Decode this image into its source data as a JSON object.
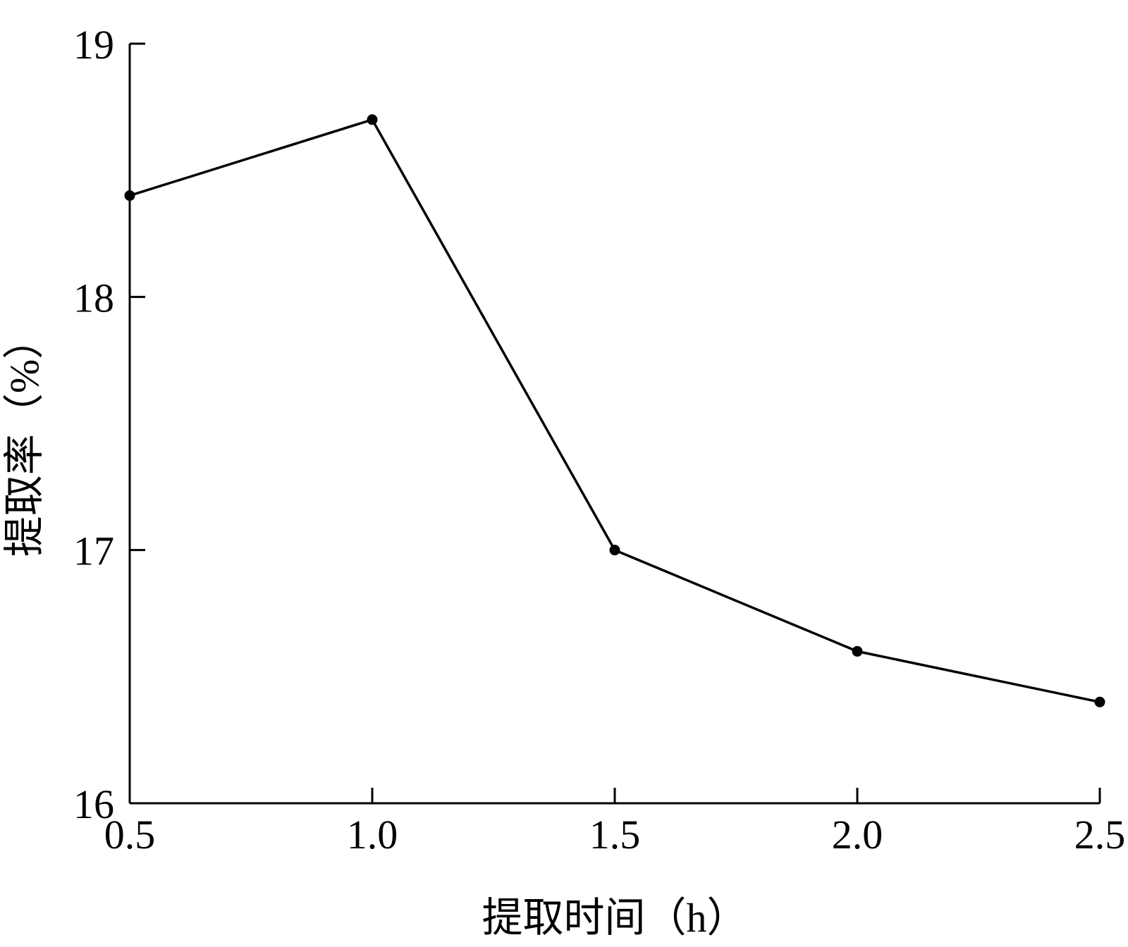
{
  "chart_data": {
    "type": "line",
    "title": "",
    "xlabel": "提取时间（h）",
    "ylabel": "提取率（%）",
    "x": [
      0.5,
      1.0,
      1.5,
      2.0,
      2.5
    ],
    "series": [
      {
        "values": [
          18.4,
          18.7,
          17.0,
          16.6,
          16.4
        ]
      }
    ],
    "xlim": [
      0.5,
      2.5
    ],
    "ylim": [
      16,
      19
    ],
    "x_ticks": [
      0.5,
      1.0,
      1.5,
      2.0,
      2.5
    ],
    "x_tick_labels": [
      "0.5",
      "1.0",
      "1.5",
      "2.0",
      "2.5"
    ],
    "y_ticks": [
      16,
      17,
      18,
      19
    ],
    "y_tick_labels": [
      "16",
      "17",
      "18",
      "19"
    ],
    "grid": false,
    "legend": "none",
    "colors": {
      "line": "#000000",
      "marker": "#000000",
      "axis": "#000000"
    }
  }
}
